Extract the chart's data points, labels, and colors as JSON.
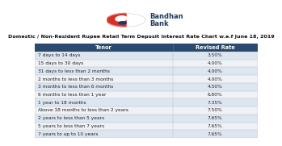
{
  "title": "Domestic / Non-Resident Rupee Retail Term Deposit Interest Rate Chart w.e.f June 18, 2019",
  "header_tenor": "Tenor",
  "header_rate": "Revised Rate",
  "header_bg": "#2b4a6e",
  "header_fg": "#ffffff",
  "row_bg_odd": "#dde5ee",
  "row_bg_even": "#eef1f5",
  "row_border": "#b0bece",
  "tenors": [
    "7 days to 14 days",
    "15 days to 30 days",
    "31 days to less than 2 months",
    "2 months to less than 3 months",
    "3 months to less than 6 months",
    "6 months to less than 1 year",
    "1 year to 18 months",
    "Above 18 months to less than 2 years",
    "2 years to less than 5 years",
    "5 years to less than 7 years",
    "7 years to up to 10 years"
  ],
  "rates": [
    "3.50%",
    "4.00%",
    "4.00%",
    "4.00%",
    "4.50%",
    "6.80%",
    "7.35%",
    "7.50%",
    "7.65%",
    "7.65%",
    "7.65%"
  ],
  "logo_red": "#d93025",
  "logo_dark": "#1e3a5f",
  "logo_white": "#ffffff",
  "bg_color": "#ffffff",
  "title_fontsize": 4.6,
  "table_fontsize": 4.2,
  "header_fontsize": 4.8,
  "bank_fontsize": 6.0,
  "col_split": 0.62
}
